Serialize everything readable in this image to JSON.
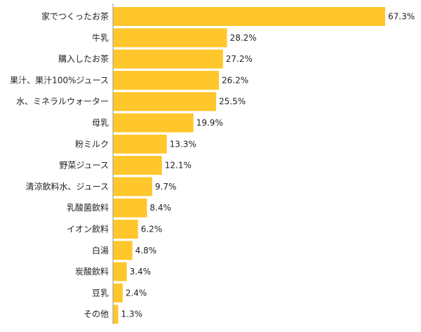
{
  "chart_data": {
    "type": "bar",
    "orientation": "horizontal",
    "categories": [
      "家でつくったお茶",
      "牛乳",
      "購入したお茶",
      "果汁、果汁100%ジュース",
      "水、ミネラルウォーター",
      "母乳",
      "粉ミルク",
      "野菜ジュース",
      "清涼飲料水、ジュース",
      "乳酸菌飲料",
      "イオン飲料",
      "白湯",
      "炭酸飲料",
      "豆乳",
      "その他"
    ],
    "values": [
      67.3,
      28.2,
      27.2,
      26.2,
      25.5,
      19.9,
      13.3,
      12.1,
      9.7,
      8.4,
      6.2,
      4.8,
      3.4,
      2.4,
      1.3
    ],
    "value_labels": [
      "67.3%",
      "28.2%",
      "27.2%",
      "26.2%",
      "25.5%",
      "19.9%",
      "13.3%",
      "12.1%",
      "9.7%",
      "8.4%",
      "6.2%",
      "4.8%",
      "3.4%",
      "2.4%",
      "1.3%"
    ],
    "unit": "%",
    "xlim": [
      0,
      67.3
    ],
    "bar_color": "#FFC72C",
    "axis_color": "#9a9a9a",
    "text_color": "#222222",
    "grid": false,
    "legend": "none",
    "title": "",
    "xlabel": "",
    "ylabel": ""
  }
}
